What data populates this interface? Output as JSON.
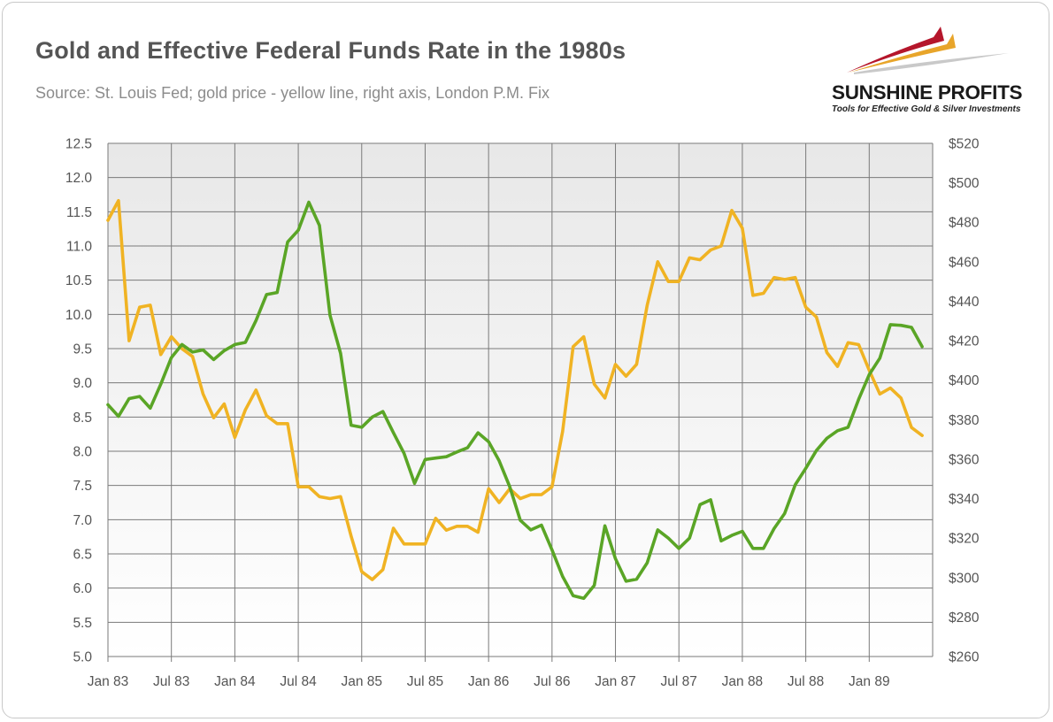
{
  "header": {
    "title": "Gold and Effective Federal Funds Rate in the 1980s",
    "subtitle": "Source: St. Louis Fed; gold price - yellow line, right axis, London P.M. Fix"
  },
  "logo": {
    "name": "SUNSHINE PROFITS",
    "tagline": "Tools for Effective Gold & Silver Investments"
  },
  "colors": {
    "fed_funds": "#5aa526",
    "gold": "#f0b323",
    "plot_bg_top": "#e8e8e8",
    "plot_bg_bottom": "#ffffff",
    "grid": "#7a7a7a"
  },
  "chart_data": {
    "type": "line",
    "x_labels": [
      "Jan 83",
      "Jul 83",
      "Jan 84",
      "Jul 84",
      "Jan 85",
      "Jul 85",
      "Jan 86",
      "Jul 86",
      "Jan 87",
      "Jul 87",
      "Jan 88",
      "Jul 88",
      "Jan 89"
    ],
    "x_start": "1983-01",
    "x_end": "1989-07",
    "y_left": {
      "min": 5.0,
      "max": 12.5,
      "step": 0.5,
      "format": "decimal1"
    },
    "y_right": {
      "min": 260,
      "max": 520,
      "step": 20,
      "format": "dollar"
    },
    "grid": true,
    "series": [
      {
        "axis": "left",
        "values": [
          8.68,
          8.51,
          8.77,
          8.8,
          8.63,
          8.98,
          9.37,
          9.56,
          9.45,
          9.48,
          9.34,
          9.47,
          9.56,
          9.59,
          9.91,
          10.29,
          10.32,
          11.06,
          11.23,
          11.64,
          11.3,
          9.99,
          9.43,
          8.38,
          8.35,
          8.5,
          8.58,
          8.27,
          7.97,
          7.53,
          7.88,
          7.9,
          7.92,
          7.99,
          8.05,
          8.27,
          8.14,
          7.86,
          7.48,
          6.99,
          6.85,
          6.92,
          6.56,
          6.17,
          5.89,
          5.85,
          6.04,
          6.91,
          6.43,
          6.1,
          6.13,
          6.37,
          6.85,
          6.73,
          6.58,
          6.73,
          7.22,
          7.29,
          6.69,
          6.77,
          6.83,
          6.58,
          6.58,
          6.87,
          7.09,
          7.51,
          7.75,
          8.01,
          8.19,
          8.3,
          8.35,
          8.76,
          9.12,
          9.36,
          9.85,
          9.84,
          9.81,
          9.53
        ]
      },
      {
        "axis": "right",
        "values": [
          481,
          491,
          420,
          437,
          438,
          413,
          422,
          416,
          412,
          393,
          381,
          388,
          371,
          385,
          395,
          382,
          378,
          378,
          346,
          346,
          341,
          340,
          341,
          321,
          303,
          299,
          304,
          325,
          317,
          317,
          317,
          330,
          324,
          326,
          326,
          323,
          345,
          338,
          345,
          340,
          342,
          342,
          346,
          374,
          417,
          422,
          398,
          391,
          408,
          402,
          408,
          438,
          460,
          450,
          450,
          462,
          461,
          466,
          468,
          486,
          477,
          443,
          444,
          452,
          451,
          452,
          437,
          432,
          414,
          407,
          419,
          418,
          405,
          393,
          396,
          391,
          376,
          372
        ]
      }
    ]
  }
}
